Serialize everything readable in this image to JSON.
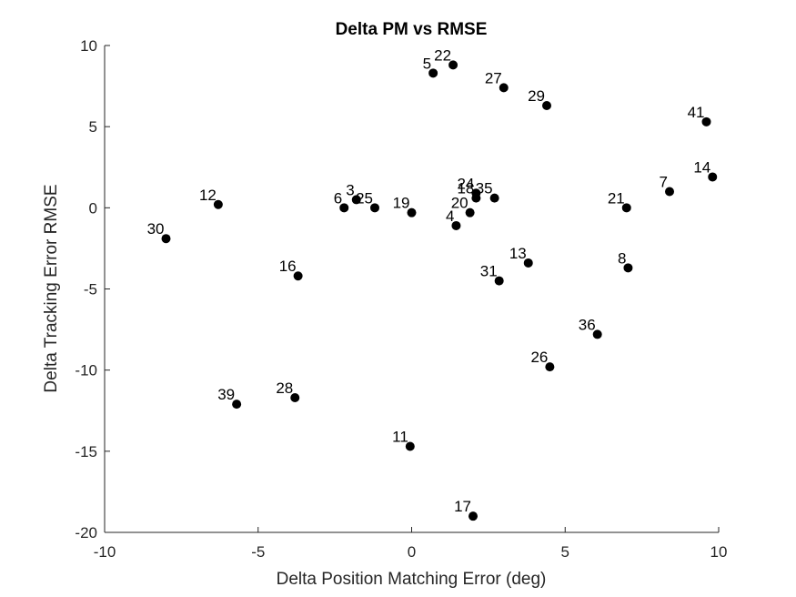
{
  "chart_data": {
    "type": "scatter",
    "title": "Delta PM vs RMSE",
    "xlabel": "Delta Position Matching Error (deg)",
    "ylabel": "Delta Tracking Error RMSE",
    "xlim": [
      -10,
      10
    ],
    "ylim": [
      -20,
      10
    ],
    "xticks": [
      -10,
      -5,
      0,
      5,
      10
    ],
    "yticks": [
      -20,
      -15,
      -10,
      -5,
      0,
      5,
      10
    ],
    "grid": false,
    "legend": "none",
    "marker_color": "#000000",
    "points": [
      {
        "label": "5",
        "x": 0.7,
        "y": 8.3
      },
      {
        "label": "22",
        "x": 1.35,
        "y": 8.8
      },
      {
        "label": "27",
        "x": 3.0,
        "y": 7.4
      },
      {
        "label": "29",
        "x": 4.4,
        "y": 6.3
      },
      {
        "label": "41",
        "x": 9.6,
        "y": 5.3
      },
      {
        "label": "14",
        "x": 9.8,
        "y": 1.9
      },
      {
        "label": "7",
        "x": 8.4,
        "y": 1.0
      },
      {
        "label": "21",
        "x": 7.0,
        "y": 0.0
      },
      {
        "label": "12",
        "x": -6.3,
        "y": 0.2
      },
      {
        "label": "30",
        "x": -8.0,
        "y": -1.9
      },
      {
        "label": "6",
        "x": -2.2,
        "y": 0.0
      },
      {
        "label": "3",
        "x": -1.8,
        "y": 0.5
      },
      {
        "label": "25",
        "x": -1.2,
        "y": 0.0
      },
      {
        "label": "19",
        "x": 0.0,
        "y": -0.3
      },
      {
        "label": "4",
        "x": 1.45,
        "y": -1.1
      },
      {
        "label": "20",
        "x": 1.9,
        "y": -0.3
      },
      {
        "label": "18",
        "x": 2.1,
        "y": 0.6
      },
      {
        "label": "24",
        "x": 2.1,
        "y": 0.9
      },
      {
        "label": "35",
        "x": 2.7,
        "y": 0.6
      },
      {
        "label": "16",
        "x": -3.7,
        "y": -4.2
      },
      {
        "label": "13",
        "x": 3.8,
        "y": -3.4
      },
      {
        "label": "31",
        "x": 2.85,
        "y": -4.5
      },
      {
        "label": "8",
        "x": 7.05,
        "y": -3.7
      },
      {
        "label": "36",
        "x": 6.05,
        "y": -7.8
      },
      {
        "label": "26",
        "x": 4.5,
        "y": -9.8
      },
      {
        "label": "39",
        "x": -5.7,
        "y": -12.1
      },
      {
        "label": "28",
        "x": -3.8,
        "y": -11.7
      },
      {
        "label": "11",
        "x": -0.05,
        "y": -14.7
      },
      {
        "label": "17",
        "x": 2.0,
        "y": -19.0
      }
    ]
  }
}
